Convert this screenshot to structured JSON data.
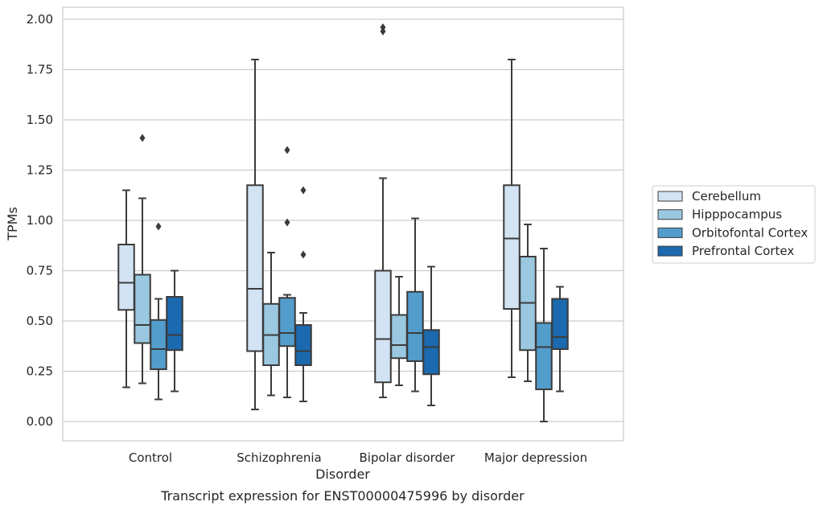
{
  "caption": "Transcript expression for ENST00000475996 by disorder",
  "chart_data": {
    "type": "box",
    "title": "",
    "xlabel": "Disorder",
    "ylabel": "TPMs",
    "ylim": [
      -0.1,
      2.06
    ],
    "yticks": [
      "0.00",
      "0.25",
      "0.50",
      "0.75",
      "1.00",
      "1.25",
      "1.50",
      "1.75",
      "2.00"
    ],
    "ytick_values": [
      0,
      0.25,
      0.5,
      0.75,
      1.0,
      1.25,
      1.5,
      1.75,
      2.0
    ],
    "grid": "horizontal",
    "legend_position": "right",
    "categories": [
      "Control",
      "Schizophrenia",
      "Bipolar disorder",
      "Major depression"
    ],
    "series": [
      {
        "name": "Cerebellum",
        "color": "#d2e3f3",
        "boxes": [
          {
            "whisker_low": 0.17,
            "q1": 0.555,
            "median": 0.69,
            "q3": 0.88,
            "whisker_high": 1.15,
            "outliers": []
          },
          {
            "whisker_low": 0.06,
            "q1": 0.35,
            "median": 0.66,
            "q3": 1.175,
            "whisker_high": 1.8,
            "outliers": []
          },
          {
            "whisker_low": 0.12,
            "q1": 0.195,
            "median": 0.41,
            "q3": 0.75,
            "whisker_high": 1.21,
            "outliers": [
              1.94,
              1.96
            ]
          },
          {
            "whisker_low": 0.22,
            "q1": 0.56,
            "median": 0.91,
            "q3": 1.175,
            "whisker_high": 1.8,
            "outliers": []
          }
        ]
      },
      {
        "name": "Hipppocampus",
        "color": "#9ac8e0",
        "boxes": [
          {
            "whisker_low": 0.19,
            "q1": 0.39,
            "median": 0.48,
            "q3": 0.73,
            "whisker_high": 1.11,
            "outliers": [
              1.41
            ]
          },
          {
            "whisker_low": 0.13,
            "q1": 0.28,
            "median": 0.43,
            "q3": 0.585,
            "whisker_high": 0.84,
            "outliers": []
          },
          {
            "whisker_low": 0.18,
            "q1": 0.315,
            "median": 0.38,
            "q3": 0.53,
            "whisker_high": 0.72,
            "outliers": []
          },
          {
            "whisker_low": 0.2,
            "q1": 0.355,
            "median": 0.59,
            "q3": 0.82,
            "whisker_high": 0.98,
            "outliers": []
          }
        ]
      },
      {
        "name": "Orbitofontal Cortex",
        "color": "#529dcc",
        "boxes": [
          {
            "whisker_low": 0.11,
            "q1": 0.26,
            "median": 0.36,
            "q3": 0.505,
            "whisker_high": 0.61,
            "outliers": [
              0.97
            ]
          },
          {
            "whisker_low": 0.12,
            "q1": 0.375,
            "median": 0.44,
            "q3": 0.615,
            "whisker_high": 0.63,
            "outliers": [
              0.99,
              1.35
            ]
          },
          {
            "whisker_low": 0.15,
            "q1": 0.3,
            "median": 0.44,
            "q3": 0.645,
            "whisker_high": 1.01,
            "outliers": []
          },
          {
            "whisker_low": 0.0,
            "q1": 0.16,
            "median": 0.37,
            "q3": 0.49,
            "whisker_high": 0.86,
            "outliers": []
          }
        ]
      },
      {
        "name": "Prefrontal Cortex",
        "color": "#1b69af",
        "boxes": [
          {
            "whisker_low": 0.15,
            "q1": 0.355,
            "median": 0.43,
            "q3": 0.62,
            "whisker_high": 0.75,
            "outliers": []
          },
          {
            "whisker_low": 0.1,
            "q1": 0.28,
            "median": 0.35,
            "q3": 0.48,
            "whisker_high": 0.54,
            "outliers": [
              0.83,
              1.15
            ]
          },
          {
            "whisker_low": 0.08,
            "q1": 0.235,
            "median": 0.37,
            "q3": 0.455,
            "whisker_high": 0.77,
            "outliers": []
          },
          {
            "whisker_low": 0.15,
            "q1": 0.36,
            "median": 0.42,
            "q3": 0.61,
            "whisker_high": 0.67,
            "outliers": []
          }
        ]
      }
    ]
  }
}
